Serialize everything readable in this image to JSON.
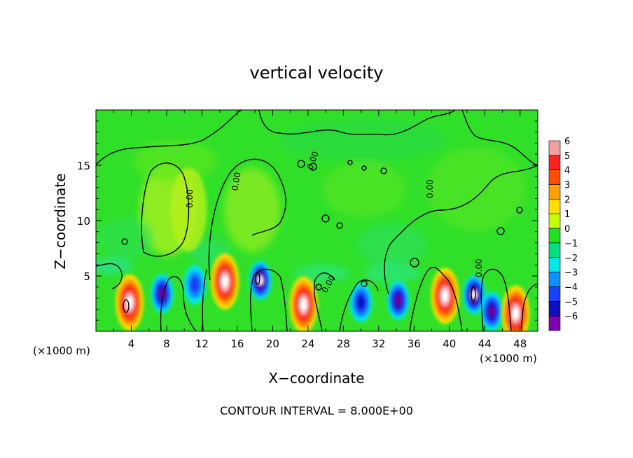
{
  "chart_data": {
    "type": "heatmap",
    "title": "vertical velocity",
    "xlabel": "X−coordinate",
    "ylabel": "Z−coordinate",
    "x_unit_left": "(×1000 m)",
    "x_unit_right": "(×1000 m)",
    "xlim": [
      0,
      50
    ],
    "ylim": [
      0,
      20
    ],
    "x_ticks": [
      4,
      8,
      12,
      16,
      20,
      24,
      28,
      32,
      36,
      40,
      44,
      48
    ],
    "y_ticks": [
      5,
      10,
      15
    ],
    "contour_labels": [
      "0.00",
      "0.00",
      "0.00",
      "0.00",
      "0.00",
      "0.00"
    ],
    "footer": "CONTOUR INTERVAL = 8.000E+00",
    "colorbar": {
      "labels": [
        "6",
        "5",
        "4",
        "3",
        "2",
        "1",
        "0",
        "−1",
        "−2",
        "−3",
        "−4",
        "−5",
        "−6"
      ],
      "colors": [
        "#f4a0a0",
        "#ff2020",
        "#ff5000",
        "#ffa000",
        "#ffe000",
        "#c8ff00",
        "#20e020",
        "#00e080",
        "#00e8e8",
        "#1090ff",
        "#1840ff",
        "#1010c0",
        "#8000b0"
      ]
    },
    "features": [
      {
        "x": 3.8,
        "z": 2.6,
        "value": 6,
        "kind": "updraft"
      },
      {
        "x": 7.5,
        "z": 3.4,
        "value": -5,
        "kind": "downdraft"
      },
      {
        "x": 10.5,
        "z": 11.0,
        "value": 1,
        "kind": "weak"
      },
      {
        "x": 11.2,
        "z": 4.2,
        "value": -3,
        "kind": "downdraft"
      },
      {
        "x": 14.6,
        "z": 4.5,
        "value": 6,
        "kind": "updraft"
      },
      {
        "x": 18.6,
        "z": 4.6,
        "value": -6,
        "kind": "downdraft"
      },
      {
        "x": 23.5,
        "z": 2.4,
        "value": 6,
        "kind": "updraft"
      },
      {
        "x": 30.0,
        "z": 2.6,
        "value": -4,
        "kind": "downdraft"
      },
      {
        "x": 34.2,
        "z": 2.8,
        "value": -5,
        "kind": "downdraft"
      },
      {
        "x": 39.5,
        "z": 3.2,
        "value": 6,
        "kind": "updraft"
      },
      {
        "x": 42.8,
        "z": 3.3,
        "value": -6,
        "kind": "downdraft"
      },
      {
        "x": 44.8,
        "z": 1.8,
        "value": -5,
        "kind": "downdraft"
      },
      {
        "x": 47.5,
        "z": 1.6,
        "value": 6,
        "kind": "updraft"
      }
    ]
  }
}
